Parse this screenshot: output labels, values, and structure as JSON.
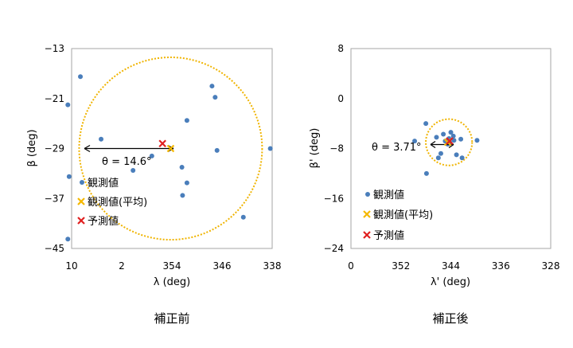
{
  "colors": {
    "observed": "#4a7ebb",
    "mean": "#f5b800",
    "predicted": "#e02020",
    "circle": "#f0b400",
    "frame": "#a6a6a6",
    "text": "#000000"
  },
  "legend": {
    "observed": "観測値",
    "mean": "観測値(平均)",
    "predicted": "予測値"
  },
  "chart_data": [
    {
      "type": "scatter",
      "caption": "補正前",
      "xlabel": "λ (deg)",
      "ylabel": "β (deg)",
      "xlim": [
        10,
        338
      ],
      "x_reversed": true,
      "x_ticks": [
        10,
        2,
        354,
        346,
        338
      ],
      "x_tick_labels": [
        "10",
        "2",
        "354",
        "346",
        "338"
      ],
      "ylim": [
        -45,
        -13
      ],
      "y_ticks": [
        -13,
        -21,
        -29,
        -37,
        -45
      ],
      "grid": false,
      "legend_position": "bottom-left",
      "annotation": "θ = 14.6°",
      "observed": [
        [
          8.6,
          -17.5
        ],
        [
          10.6,
          -22.0
        ],
        [
          5.3,
          -27.5
        ],
        [
          0.2,
          -32.5
        ],
        [
          357.2,
          -30.2
        ],
        [
          352.4,
          -32.0
        ],
        [
          352.3,
          -36.5
        ],
        [
          351.6,
          -24.5
        ],
        [
          351.6,
          -34.5
        ],
        [
          347.6,
          -19.0
        ],
        [
          347.1,
          -20.8
        ],
        [
          346.8,
          -29.3
        ],
        [
          342.6,
          -40.0
        ],
        [
          338.3,
          -29.0
        ],
        [
          10.4,
          -33.5
        ],
        [
          10.6,
          -43.5
        ]
      ],
      "mean": [
        354.2,
        -29.0
      ],
      "predicted": [
        355.5,
        -28.2
      ],
      "circle": {
        "center": [
          354.2,
          -29.0
        ],
        "radius": 14.6
      }
    },
    {
      "type": "scatter",
      "caption": "補正後",
      "xlabel": "λ' (deg)",
      "ylabel": "β' (deg)",
      "xlim": [
        360,
        328
      ],
      "x_reversed": true,
      "x_ticks": [
        352,
        344,
        336,
        328
      ],
      "x_tick_labels": [
        "352",
        "344",
        "336",
        "328"
      ],
      "x_zero_label": "0",
      "ylim": [
        -24,
        8
      ],
      "y_ticks": [
        8,
        0,
        -8,
        -16,
        -24
      ],
      "grid": false,
      "legend_position": "bottom-left",
      "annotation": "θ = 3.71°",
      "observed": [
        [
          348.0,
          -4.0
        ],
        [
          349.8,
          -6.8
        ],
        [
          347.9,
          -12.0
        ],
        [
          346.3,
          -6.2
        ],
        [
          346.0,
          -9.5
        ],
        [
          345.6,
          -8.8
        ],
        [
          345.2,
          -5.7
        ],
        [
          344.9,
          -6.8
        ],
        [
          344.5,
          -7.3
        ],
        [
          344.3,
          -6.4
        ],
        [
          344.0,
          -5.4
        ],
        [
          343.5,
          -6.7
        ],
        [
          343.1,
          -9.0
        ],
        [
          344.2,
          -7.0
        ],
        [
          343.6,
          -6.0
        ],
        [
          342.4,
          -6.5
        ],
        [
          342.2,
          -9.5
        ],
        [
          339.8,
          -6.7
        ]
      ],
      "mean": [
        344.5,
        -7.0
      ],
      "predicted": [
        344.2,
        -6.8
      ],
      "circle": {
        "center": [
          344.3,
          -7.0
        ],
        "radius": 3.71
      }
    }
  ]
}
